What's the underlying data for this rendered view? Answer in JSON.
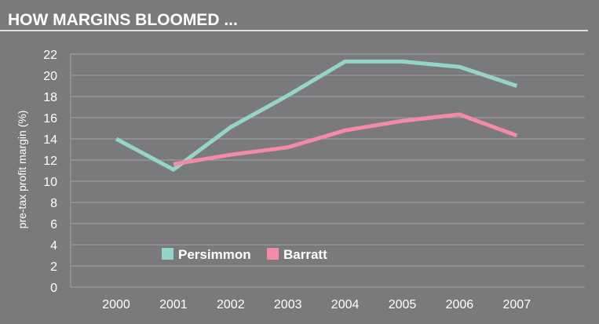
{
  "chart_data": {
    "type": "line",
    "title": "HOW MARGINS BLOOMED ...",
    "xlabel": "",
    "ylabel": "pre-tax profit margin (%)",
    "x": [
      "2000",
      "2001",
      "2002",
      "2003",
      "2004",
      "2005",
      "2006",
      "2007"
    ],
    "ylim": [
      0,
      22
    ],
    "yticks": [
      0,
      2,
      4,
      6,
      8,
      10,
      12,
      14,
      16,
      18,
      20,
      22
    ],
    "grid": true,
    "legend_position": "lower-left",
    "series": [
      {
        "name": "Persimmon",
        "color": "#95d5c9",
        "values": [
          14.0,
          11.1,
          15.1,
          18.1,
          21.3,
          21.3,
          20.8,
          19.0
        ]
      },
      {
        "name": "Barratt",
        "color": "#f28aa8",
        "values": [
          null,
          11.6,
          12.5,
          13.2,
          14.8,
          15.7,
          16.3,
          14.3
        ]
      }
    ]
  }
}
